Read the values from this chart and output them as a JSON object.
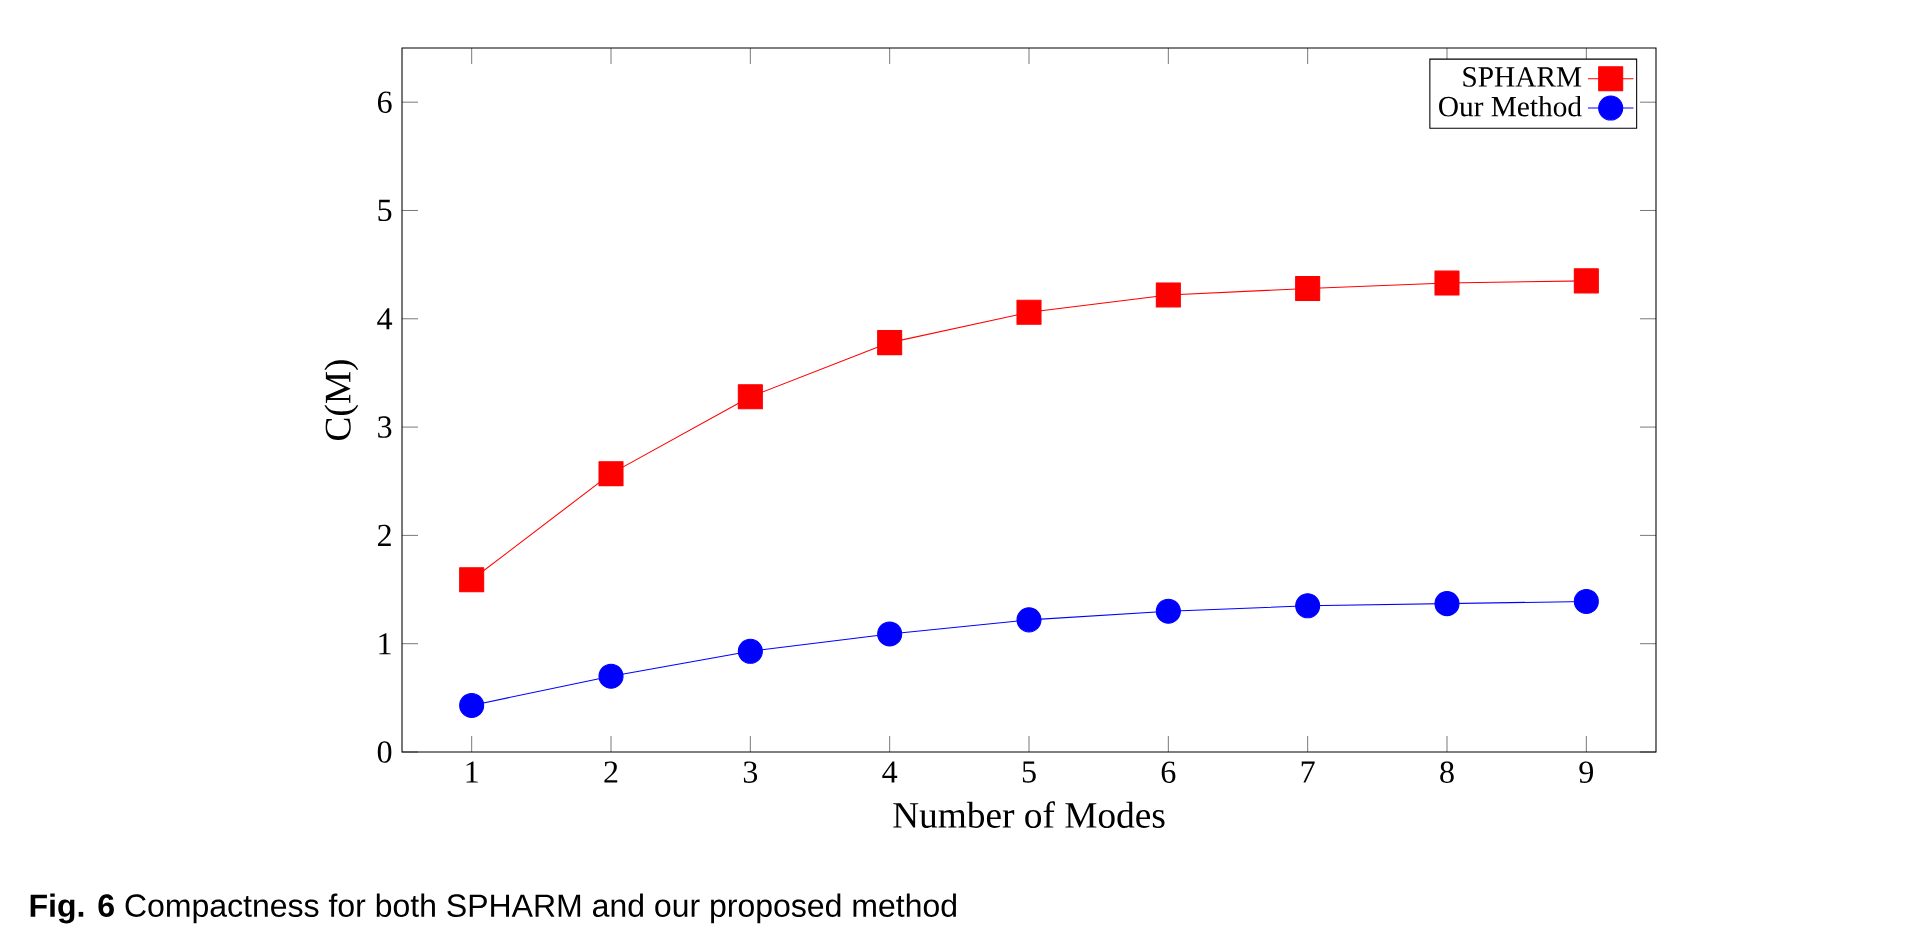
{
  "chart_data": {
    "type": "line",
    "xlabel": "Number of Modes",
    "ylabel": "C(M)",
    "x": [
      1,
      2,
      3,
      4,
      5,
      6,
      7,
      8,
      9
    ],
    "series": [
      {
        "name": "SPHARM",
        "color": "#ff0000",
        "marker": "square",
        "values": [
          1.59,
          2.57,
          3.28,
          3.78,
          4.06,
          4.22,
          4.28,
          4.33,
          4.35
        ]
      },
      {
        "name": "Our Method",
        "color": "#0000ff",
        "marker": "circle",
        "values": [
          0.43,
          0.7,
          0.93,
          1.09,
          1.22,
          1.3,
          1.35,
          1.37,
          1.39
        ]
      }
    ],
    "xlim": [
      0.5,
      9.5
    ],
    "ylim": [
      0,
      6.5
    ],
    "xticks": [
      1,
      2,
      3,
      4,
      5,
      6,
      7,
      8,
      9
    ],
    "yticks": [
      0,
      1,
      2,
      3,
      4,
      5,
      6
    ],
    "grid": false,
    "legend": "top right",
    "line_style": "solid",
    "annotations": [
      "**Fig. 6** Compactness for both SPHARM and our proposed method"
    ]
  }
}
